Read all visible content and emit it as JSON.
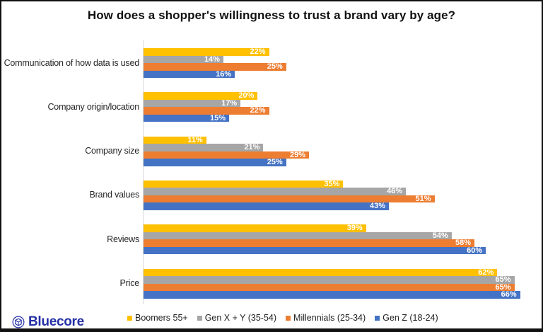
{
  "title": "How does a shopper's willingness to trust a brand vary by age?",
  "chart_data": {
    "type": "bar",
    "orientation": "horizontal",
    "title": "How does a shopper's willingness to trust a brand vary by age?",
    "categories": [
      "Communication of how data is used",
      "Company origin/location",
      "Company size",
      "Brand values",
      "Reviews",
      "Price"
    ],
    "series": [
      {
        "name": "Boomers 55+",
        "color": "#FFC000",
        "values": [
          22,
          20,
          11,
          35,
          39,
          62
        ]
      },
      {
        "name": "Gen X + Y (35-54)",
        "color": "#A6A6A6",
        "values": [
          14,
          17,
          21,
          46,
          54,
          65
        ]
      },
      {
        "name": "Millennials (25-34)",
        "color": "#ED7D31",
        "values": [
          25,
          22,
          29,
          51,
          58,
          65
        ]
      },
      {
        "name": "Gen Z (18-24)",
        "color": "#4472C4",
        "values": [
          16,
          15,
          25,
          43,
          60,
          66
        ]
      }
    ],
    "value_suffix": "%",
    "xlim": [
      0,
      66
    ],
    "grid": false,
    "legend_position": "bottom"
  },
  "branding": {
    "logo_text": "Bluecore",
    "logo_color": "#2430a6",
    "logo_icon": "bluecore-cube-icon"
  }
}
